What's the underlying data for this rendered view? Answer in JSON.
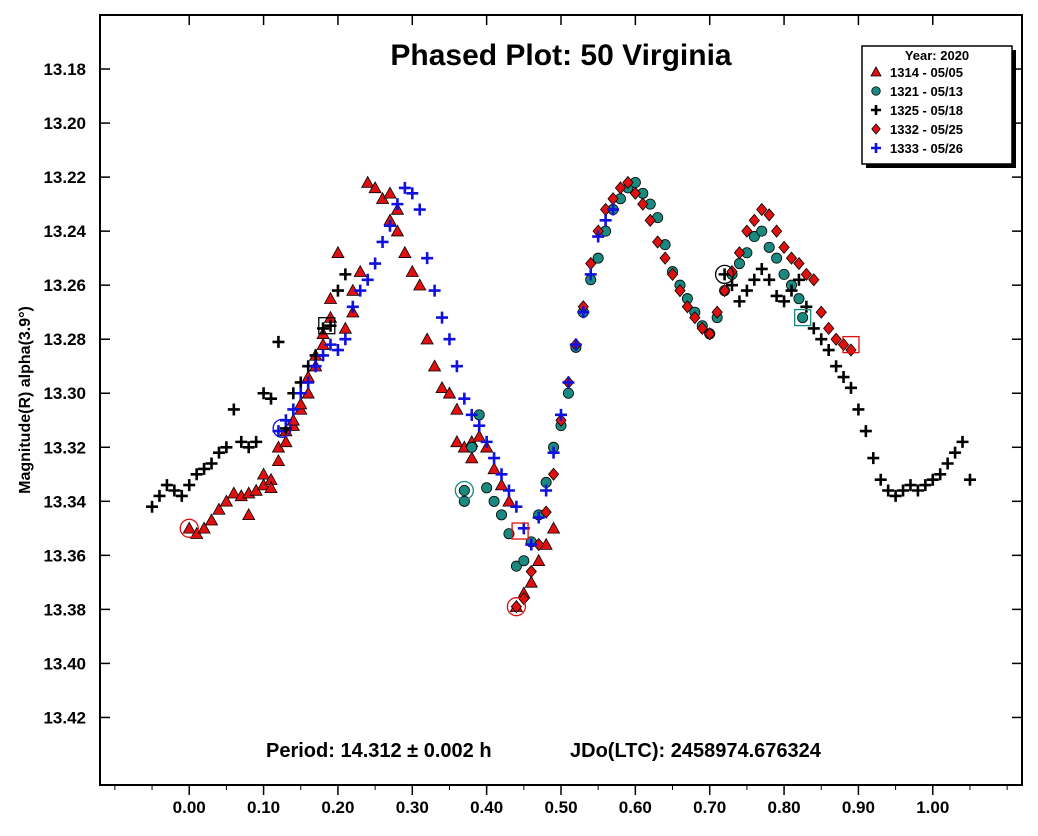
{
  "chart_data": {
    "type": "scatter",
    "title": "Phased Plot: 50 Virginia",
    "xlabel": "",
    "ylabel": "Magnitude(R) alpha(3.9°)",
    "xlim": [
      -0.12,
      1.12
    ],
    "ylim": [
      13.16,
      13.445
    ],
    "y_inverted": true,
    "grid": false,
    "x_ticks": [
      "0.00",
      "0.10",
      "0.20",
      "0.30",
      "0.40",
      "0.50",
      "0.60",
      "0.70",
      "0.80",
      "0.90",
      "1.00"
    ],
    "y_ticks": [
      "13.18",
      "13.20",
      "13.22",
      "13.24",
      "13.26",
      "13.28",
      "13.30",
      "13.32",
      "13.34",
      "13.36",
      "13.38",
      "13.40",
      "13.42"
    ],
    "legend": {
      "position": "top-right",
      "title": "Year: 2020"
    },
    "footer_period": "Period: 14.312 ± 0.002 h",
    "footer_epoch": "JDo(LTC): 2458974.676324",
    "series": [
      {
        "name": "1314 - 05/05",
        "marker": "triangle",
        "color": "#e01010",
        "points": [
          [
            0.0,
            13.35
          ],
          [
            0.01,
            13.352
          ],
          [
            0.02,
            13.35
          ],
          [
            0.03,
            13.347
          ],
          [
            0.04,
            13.343
          ],
          [
            0.05,
            13.34
          ],
          [
            0.06,
            13.337
          ],
          [
            0.07,
            13.338
          ],
          [
            0.08,
            13.345
          ],
          [
            0.08,
            13.337
          ],
          [
            0.09,
            13.336
          ],
          [
            0.1,
            13.334
          ],
          [
            0.1,
            13.33
          ],
          [
            0.11,
            13.332
          ],
          [
            0.11,
            13.335
          ],
          [
            0.12,
            13.32
          ],
          [
            0.12,
            13.325
          ],
          [
            0.13,
            13.318
          ],
          [
            0.13,
            13.314
          ],
          [
            0.14,
            13.312
          ],
          [
            0.14,
            13.31
          ],
          [
            0.15,
            13.306
          ],
          [
            0.15,
            13.304
          ],
          [
            0.16,
            13.3
          ],
          [
            0.16,
            13.294
          ],
          [
            0.17,
            13.29
          ],
          [
            0.17,
            13.286
          ],
          [
            0.18,
            13.282
          ],
          [
            0.18,
            13.278
          ],
          [
            0.19,
            13.272
          ],
          [
            0.19,
            13.265
          ],
          [
            0.2,
            13.248
          ],
          [
            0.21,
            13.276
          ],
          [
            0.22,
            13.27
          ],
          [
            0.22,
            13.262
          ],
          [
            0.23,
            13.255
          ],
          [
            0.24,
            13.222
          ],
          [
            0.25,
            13.224
          ],
          [
            0.26,
            13.228
          ],
          [
            0.27,
            13.236
          ],
          [
            0.27,
            13.226
          ],
          [
            0.28,
            13.232
          ],
          [
            0.28,
            13.24
          ],
          [
            0.29,
            13.248
          ],
          [
            0.3,
            13.255
          ],
          [
            0.31,
            13.26
          ],
          [
            0.32,
            13.28
          ],
          [
            0.33,
            13.29
          ],
          [
            0.34,
            13.298
          ],
          [
            0.35,
            13.3
          ],
          [
            0.36,
            13.306
          ],
          [
            0.36,
            13.318
          ],
          [
            0.37,
            13.32
          ],
          [
            0.38,
            13.318
          ],
          [
            0.38,
            13.324
          ],
          [
            0.39,
            13.316
          ],
          [
            0.4,
            13.32
          ],
          [
            0.41,
            13.328
          ],
          [
            0.42,
            13.334
          ],
          [
            0.43,
            13.34
          ],
          [
            0.44,
            13.379
          ],
          [
            0.45,
            13.374
          ],
          [
            0.46,
            13.37
          ],
          [
            0.47,
            13.362
          ],
          [
            0.48,
            13.356
          ],
          [
            0.49,
            13.35
          ]
        ]
      },
      {
        "name": "1321 - 05/13",
        "marker": "circle",
        "color": "#1a8a80",
        "points": [
          [
            0.37,
            13.336
          ],
          [
            0.37,
            13.34
          ],
          [
            0.38,
            13.32
          ],
          [
            0.39,
            13.308
          ],
          [
            0.4,
            13.335
          ],
          [
            0.41,
            13.34
          ],
          [
            0.42,
            13.345
          ],
          [
            0.43,
            13.352
          ],
          [
            0.44,
            13.364
          ],
          [
            0.45,
            13.362
          ],
          [
            0.46,
            13.355
          ],
          [
            0.47,
            13.345
          ],
          [
            0.48,
            13.333
          ],
          [
            0.49,
            13.32
          ],
          [
            0.5,
            13.312
          ],
          [
            0.51,
            13.3
          ],
          [
            0.52,
            13.283
          ],
          [
            0.53,
            13.27
          ],
          [
            0.54,
            13.258
          ],
          [
            0.55,
            13.25
          ],
          [
            0.56,
            13.24
          ],
          [
            0.57,
            13.232
          ],
          [
            0.58,
            13.228
          ],
          [
            0.59,
            13.224
          ],
          [
            0.6,
            13.222
          ],
          [
            0.61,
            13.226
          ],
          [
            0.62,
            13.23
          ],
          [
            0.63,
            13.235
          ],
          [
            0.64,
            13.245
          ],
          [
            0.65,
            13.255
          ],
          [
            0.66,
            13.26
          ],
          [
            0.67,
            13.265
          ],
          [
            0.68,
            13.27
          ],
          [
            0.69,
            13.275
          ],
          [
            0.7,
            13.278
          ],
          [
            0.71,
            13.272
          ],
          [
            0.72,
            13.262
          ],
          [
            0.73,
            13.256
          ],
          [
            0.74,
            13.252
          ],
          [
            0.75,
            13.248
          ],
          [
            0.76,
            13.242
          ],
          [
            0.77,
            13.24
          ],
          [
            0.78,
            13.246
          ],
          [
            0.79,
            13.25
          ],
          [
            0.8,
            13.256
          ],
          [
            0.81,
            13.26
          ],
          [
            0.82,
            13.265
          ],
          [
            0.825,
            13.272
          ]
        ]
      },
      {
        "name": "1325 - 05/18",
        "marker": "plus",
        "color": "#000000",
        "points": [
          [
            -0.05,
            13.342
          ],
          [
            -0.04,
            13.338
          ],
          [
            -0.03,
            13.334
          ],
          [
            -0.02,
            13.336
          ],
          [
            -0.01,
            13.338
          ],
          [
            0.0,
            13.334
          ],
          [
            0.01,
            13.33
          ],
          [
            0.02,
            13.328
          ],
          [
            0.03,
            13.326
          ],
          [
            0.04,
            13.322
          ],
          [
            0.05,
            13.32
          ],
          [
            0.06,
            13.306
          ],
          [
            0.07,
            13.318
          ],
          [
            0.08,
            13.32
          ],
          [
            0.09,
            13.318
          ],
          [
            0.1,
            13.3
          ],
          [
            0.11,
            13.302
          ],
          [
            0.12,
            13.281
          ],
          [
            0.13,
            13.313
          ],
          [
            0.14,
            13.3
          ],
          [
            0.15,
            13.296
          ],
          [
            0.16,
            13.29
          ],
          [
            0.17,
            13.286
          ],
          [
            0.18,
            13.276
          ],
          [
            0.19,
            13.275
          ],
          [
            0.2,
            13.262
          ],
          [
            0.21,
            13.256
          ],
          [
            0.72,
            13.256
          ],
          [
            0.73,
            13.26
          ],
          [
            0.74,
            13.266
          ],
          [
            0.75,
            13.262
          ],
          [
            0.76,
            13.258
          ],
          [
            0.77,
            13.254
          ],
          [
            0.78,
            13.258
          ],
          [
            0.79,
            13.264
          ],
          [
            0.8,
            13.266
          ],
          [
            0.81,
            13.262
          ],
          [
            0.82,
            13.258
          ],
          [
            0.83,
            13.268
          ],
          [
            0.84,
            13.276
          ],
          [
            0.85,
            13.28
          ],
          [
            0.86,
            13.284
          ],
          [
            0.87,
            13.29
          ],
          [
            0.88,
            13.294
          ],
          [
            0.89,
            13.298
          ],
          [
            0.9,
            13.306
          ],
          [
            0.91,
            13.314
          ],
          [
            0.92,
            13.324
          ],
          [
            0.93,
            13.332
          ],
          [
            0.94,
            13.336
          ],
          [
            0.95,
            13.338
          ],
          [
            0.96,
            13.336
          ],
          [
            0.97,
            13.334
          ],
          [
            0.98,
            13.336
          ],
          [
            0.99,
            13.334
          ],
          [
            1.0,
            13.332
          ],
          [
            1.01,
            13.33
          ],
          [
            1.02,
            13.326
          ],
          [
            1.03,
            13.322
          ],
          [
            1.04,
            13.318
          ],
          [
            1.05,
            13.332
          ]
        ]
      },
      {
        "name": "1332 - 05/25",
        "marker": "diamond",
        "color": "#e01010",
        "points": [
          [
            0.44,
            13.379
          ],
          [
            0.45,
            13.376
          ],
          [
            0.46,
            13.366
          ],
          [
            0.47,
            13.356
          ],
          [
            0.48,
            13.344
          ],
          [
            0.49,
            13.33
          ],
          [
            0.5,
            13.31
          ],
          [
            0.51,
            13.296
          ],
          [
            0.52,
            13.282
          ],
          [
            0.53,
            13.268
          ],
          [
            0.54,
            13.252
          ],
          [
            0.55,
            13.24
          ],
          [
            0.56,
            13.232
          ],
          [
            0.57,
            13.228
          ],
          [
            0.58,
            13.224
          ],
          [
            0.59,
            13.222
          ],
          [
            0.6,
            13.226
          ],
          [
            0.61,
            13.23
          ],
          [
            0.62,
            13.236
          ],
          [
            0.63,
            13.244
          ],
          [
            0.64,
            13.25
          ],
          [
            0.65,
            13.256
          ],
          [
            0.66,
            13.262
          ],
          [
            0.67,
            13.268
          ],
          [
            0.68,
            13.272
          ],
          [
            0.69,
            13.276
          ],
          [
            0.7,
            13.278
          ],
          [
            0.71,
            13.27
          ],
          [
            0.72,
            13.262
          ],
          [
            0.73,
            13.255
          ],
          [
            0.74,
            13.248
          ],
          [
            0.75,
            13.24
          ],
          [
            0.76,
            13.236
          ],
          [
            0.77,
            13.232
          ],
          [
            0.78,
            13.234
          ],
          [
            0.79,
            13.24
          ],
          [
            0.8,
            13.246
          ],
          [
            0.81,
            13.25
          ],
          [
            0.82,
            13.252
          ],
          [
            0.83,
            13.256
          ],
          [
            0.84,
            13.258
          ],
          [
            0.85,
            13.27
          ],
          [
            0.86,
            13.276
          ],
          [
            0.87,
            13.28
          ],
          [
            0.88,
            13.282
          ],
          [
            0.89,
            13.284
          ]
        ]
      },
      {
        "name": "1333 - 05/26",
        "marker": "plus",
        "color": "#1010e0",
        "points": [
          [
            0.12,
            13.314
          ],
          [
            0.13,
            13.31
          ],
          [
            0.14,
            13.306
          ],
          [
            0.15,
            13.3
          ],
          [
            0.16,
            13.296
          ],
          [
            0.17,
            13.29
          ],
          [
            0.18,
            13.286
          ],
          [
            0.19,
            13.282
          ],
          [
            0.2,
            13.284
          ],
          [
            0.21,
            13.28
          ],
          [
            0.22,
            13.268
          ],
          [
            0.23,
            13.262
          ],
          [
            0.24,
            13.258
          ],
          [
            0.25,
            13.252
          ],
          [
            0.26,
            13.244
          ],
          [
            0.27,
            13.238
          ],
          [
            0.28,
            13.23
          ],
          [
            0.29,
            13.224
          ],
          [
            0.3,
            13.226
          ],
          [
            0.31,
            13.232
          ],
          [
            0.32,
            13.25
          ],
          [
            0.33,
            13.262
          ],
          [
            0.34,
            13.272
          ],
          [
            0.35,
            13.28
          ],
          [
            0.36,
            13.29
          ],
          [
            0.37,
            13.302
          ],
          [
            0.38,
            13.308
          ],
          [
            0.39,
            13.312
          ],
          [
            0.4,
            13.318
          ],
          [
            0.41,
            13.324
          ],
          [
            0.42,
            13.33
          ],
          [
            0.43,
            13.336
          ],
          [
            0.44,
            13.342
          ],
          [
            0.45,
            13.35
          ],
          [
            0.46,
            13.356
          ],
          [
            0.47,
            13.346
          ],
          [
            0.48,
            13.336
          ],
          [
            0.49,
            13.322
          ],
          [
            0.5,
            13.308
          ],
          [
            0.51,
            13.296
          ],
          [
            0.52,
            13.282
          ],
          [
            0.53,
            13.27
          ],
          [
            0.54,
            13.256
          ],
          [
            0.55,
            13.242
          ],
          [
            0.56,
            13.236
          ],
          [
            0.57,
            13.232
          ]
        ]
      }
    ],
    "highlights": [
      {
        "x": 0.0,
        "y": 13.35,
        "shape": "circle",
        "color": "#e01010"
      },
      {
        "x": 0.125,
        "y": 13.313,
        "shape": "circle",
        "color": "#1010e0"
      },
      {
        "x": 0.185,
        "y": 13.275,
        "shape": "square",
        "color": "#000000"
      },
      {
        "x": 0.37,
        "y": 13.336,
        "shape": "circle",
        "color": "#1a8a80"
      },
      {
        "x": 0.44,
        "y": 13.379,
        "shape": "circle",
        "color": "#e01010"
      },
      {
        "x": 0.445,
        "y": 13.351,
        "shape": "square",
        "color": "#e01010"
      },
      {
        "x": 0.72,
        "y": 13.256,
        "shape": "circle",
        "color": "#000000"
      },
      {
        "x": 0.825,
        "y": 13.272,
        "shape": "square",
        "color": "#1a8a80"
      },
      {
        "x": 0.89,
        "y": 13.282,
        "shape": "square",
        "color": "#e01010"
      }
    ]
  }
}
